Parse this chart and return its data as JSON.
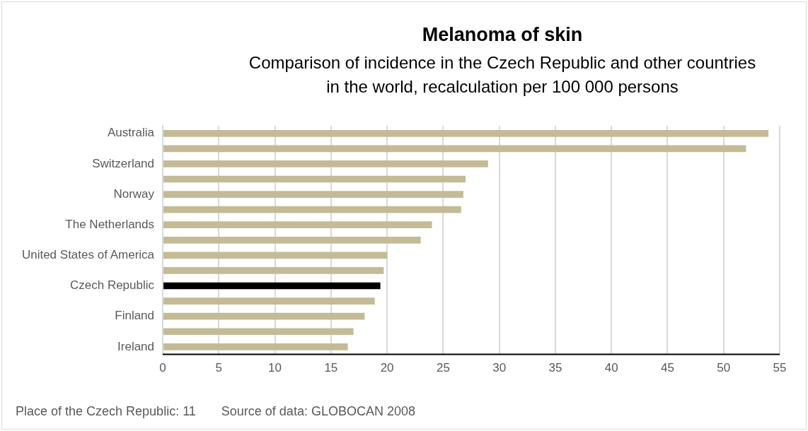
{
  "chart_data": {
    "type": "bar",
    "orientation": "horizontal",
    "title": "Melanoma of skin",
    "subtitle": "Comparison of incidence in the Czech Republic and other countries\nin the world, recalculation per 100 000 persons",
    "categories": [
      "Australia",
      null,
      "Switzerland",
      null,
      "Norway",
      null,
      "The Netherlands",
      null,
      "United States of America",
      null,
      "Czech Republic",
      null,
      "Finland",
      null,
      "Ireland"
    ],
    "values": [
      54.0,
      52.0,
      29.0,
      27.0,
      26.8,
      26.6,
      24.0,
      23.0,
      20.0,
      19.7,
      19.4,
      18.9,
      18.0,
      17.0,
      16.5
    ],
    "colors": [
      "#c4bb96",
      "#c4bb96",
      "#c4bb96",
      "#c4bb96",
      "#c4bb96",
      "#c4bb96",
      "#c4bb96",
      "#c4bb96",
      "#c4bb96",
      "#c4bb96",
      "#000000",
      "#c4bb96",
      "#c4bb96",
      "#c4bb96",
      "#c4bb96"
    ],
    "xlim": [
      0,
      55
    ],
    "xticks": [
      0,
      5,
      10,
      15,
      20,
      25,
      30,
      35,
      40,
      45,
      50,
      55
    ],
    "grid": "x",
    "legend": false,
    "annotations": [
      "Place of the Czech Republic: 11",
      "Source of data: GLOBOCAN 2008"
    ]
  }
}
